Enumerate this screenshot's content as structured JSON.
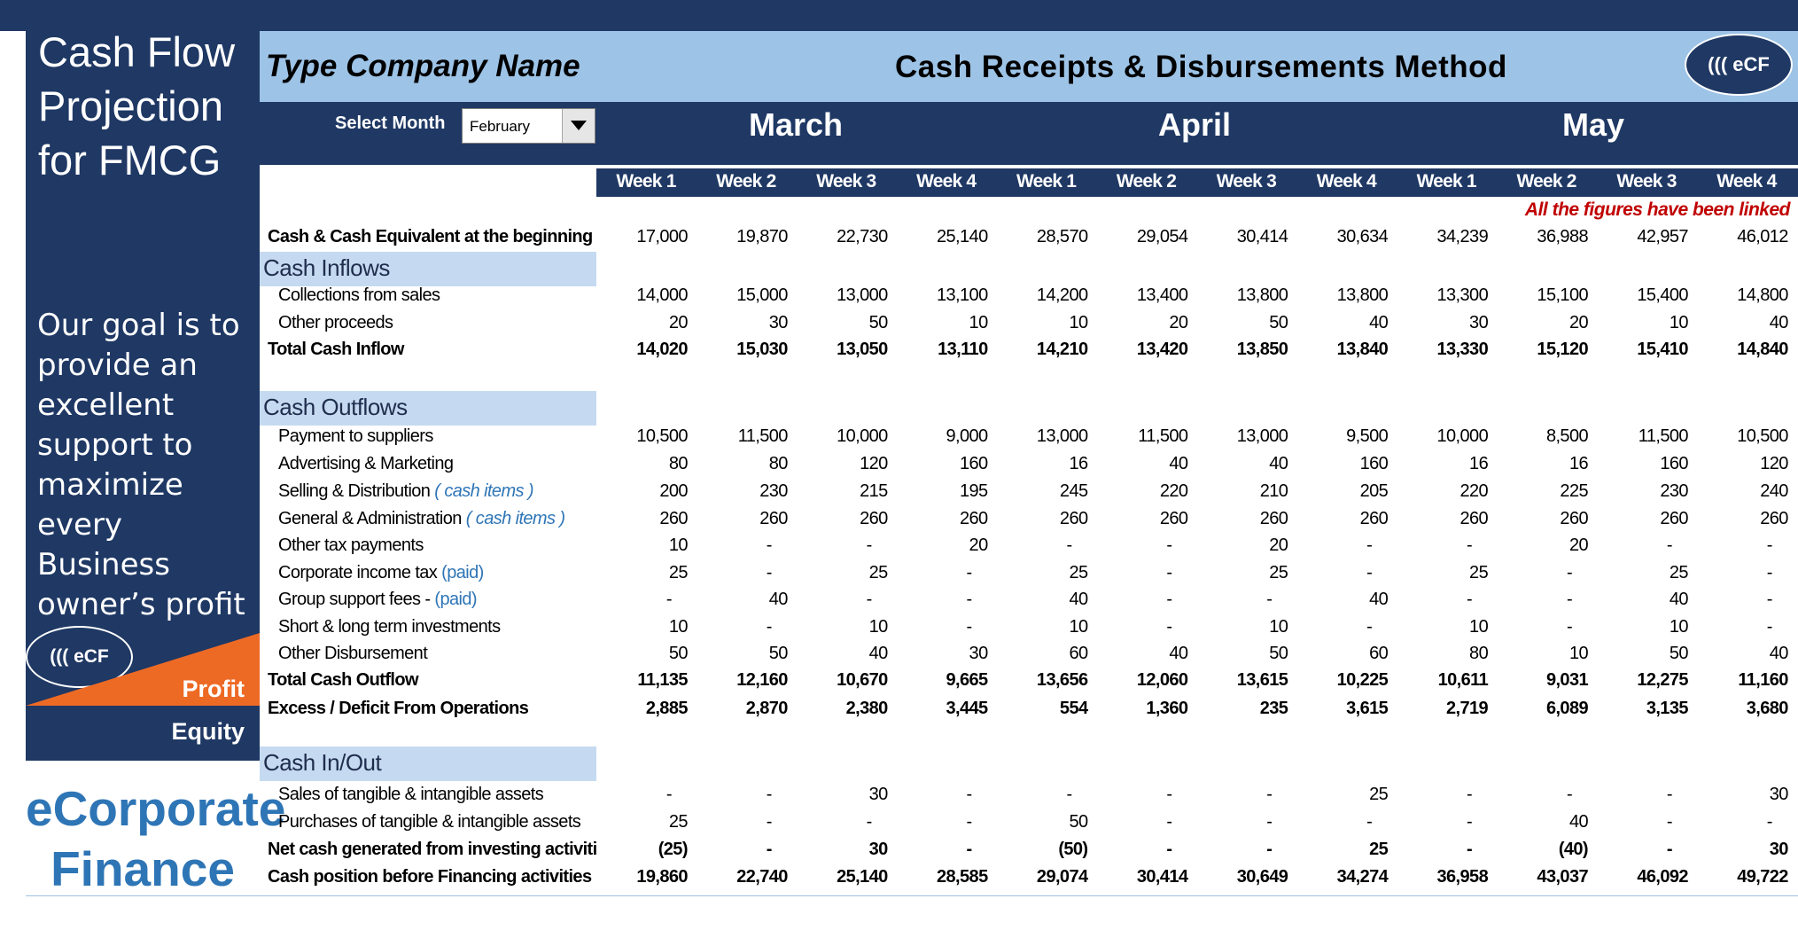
{
  "sidebar": {
    "title": "Cash Flow Projection for FMCG",
    "goal": "Our goal is to provide an excellent support to maximize every Business owner’s profit",
    "logo_text": "((( eCF",
    "profit_label": "Profit",
    "equity_label": "Equity",
    "brand_line1": "eCorporate",
    "brand_line2": "Finance"
  },
  "header": {
    "company_name": "Type Company Name",
    "method_title": "Cash Receipts & Disbursements Method",
    "logo_text": "((( eCF",
    "select_label": "Select Month",
    "selected_month": "February",
    "months": [
      "March",
      "April",
      "May"
    ],
    "weeks": [
      "Week 1",
      "Week 2",
      "Week 3",
      "Week 4",
      "Week 1",
      "Week 2",
      "Week 3",
      "Week 4",
      "Week 1",
      "Week 2",
      "Week 3",
      "Week 4"
    ],
    "note": "All the figures have been linked"
  },
  "colors": {
    "navy": "#1f3864",
    "light_blue": "#9dc3e6",
    "section_blue": "#c5daf0",
    "orange": "#ed6a25",
    "note_red": "#c00000",
    "brand_blue": "#2e75b6"
  },
  "rows": [
    {
      "label": "Cash & Cash Equivalent at the beginning",
      "style": "bold-label",
      "values": [
        "17,000",
        "19,870",
        "22,730",
        "25,140",
        "28,570",
        "29,054",
        "30,414",
        "30,634",
        "34,239",
        "36,988",
        "42,957",
        "46,012"
      ]
    },
    {
      "section": "Cash Inflows"
    },
    {
      "label": "Collections from sales",
      "style": "indent",
      "values": [
        "14,000",
        "15,000",
        "13,000",
        "13,100",
        "14,200",
        "13,400",
        "13,800",
        "13,800",
        "13,300",
        "15,100",
        "15,400",
        "14,800"
      ]
    },
    {
      "label": "Other proceeds",
      "style": "indent",
      "values": [
        "20",
        "30",
        "50",
        "10",
        "10",
        "20",
        "50",
        "40",
        "30",
        "20",
        "10",
        "40"
      ]
    },
    {
      "label": "Total Cash Inflow",
      "style": "total",
      "values": [
        "14,020",
        "15,030",
        "13,050",
        "13,110",
        "14,210",
        "13,420",
        "13,850",
        "13,840",
        "13,330",
        "15,120",
        "15,410",
        "14,840"
      ]
    },
    {
      "section": "Cash Outflows"
    },
    {
      "label": "Payment to suppliers",
      "style": "indent",
      "values": [
        "10,500",
        "11,500",
        "10,000",
        "9,000",
        "13,000",
        "11,500",
        "13,000",
        "9,500",
        "10,000",
        "8,500",
        "11,500",
        "10,500"
      ]
    },
    {
      "label": "Advertising & Marketing",
      "style": "indent",
      "values": [
        "80",
        "80",
        "120",
        "160",
        "16",
        "40",
        "40",
        "160",
        "16",
        "16",
        "160",
        "120"
      ]
    },
    {
      "label": "Selling & Distribution",
      "tag": "( cash items )",
      "tag_italic": true,
      "style": "indent",
      "values": [
        "200",
        "230",
        "215",
        "195",
        "245",
        "220",
        "210",
        "205",
        "220",
        "225",
        "230",
        "240"
      ]
    },
    {
      "label": "General & Administration",
      "tag": "( cash items )",
      "tag_italic": true,
      "style": "indent",
      "values": [
        "260",
        "260",
        "260",
        "260",
        "260",
        "260",
        "260",
        "260",
        "260",
        "260",
        "260",
        "260"
      ]
    },
    {
      "label": "Other tax payments",
      "style": "indent",
      "values": [
        "10",
        "-",
        "-",
        "20",
        "-",
        "-",
        "20",
        "-",
        "-",
        "20",
        "-",
        "-"
      ]
    },
    {
      "label": "Corporate income tax",
      "tag": "(paid)",
      "style": "indent",
      "values": [
        "25",
        "-",
        "25",
        "-",
        "25",
        "-",
        "25",
        "-",
        "25",
        "-",
        "25",
        "-"
      ]
    },
    {
      "label": "Group support fees -",
      "tag": "(paid)",
      "style": "indent",
      "values": [
        "-",
        "40",
        "-",
        "-",
        "40",
        "-",
        "-",
        "40",
        "-",
        "-",
        "40",
        "-"
      ]
    },
    {
      "label": "Short & long term investments",
      "style": "indent",
      "values": [
        "10",
        "-",
        "10",
        "-",
        "10",
        "-",
        "10",
        "-",
        "10",
        "-",
        "10",
        "-"
      ]
    },
    {
      "label": "Other Disbursement",
      "style": "indent",
      "values": [
        "50",
        "50",
        "40",
        "30",
        "60",
        "40",
        "50",
        "60",
        "80",
        "10",
        "50",
        "40"
      ]
    },
    {
      "label": "Total Cash Outflow",
      "style": "total",
      "values": [
        "11,135",
        "12,160",
        "10,670",
        "9,665",
        "13,656",
        "12,060",
        "13,615",
        "10,225",
        "10,611",
        "9,031",
        "12,275",
        "11,160"
      ]
    },
    {
      "label": "Excess / Deficit From Operations",
      "style": "total",
      "values": [
        "2,885",
        "2,870",
        "2,380",
        "3,445",
        "554",
        "1,360",
        "235",
        "3,615",
        "2,719",
        "6,089",
        "3,135",
        "3,680"
      ]
    },
    {
      "section": "Cash In/Out"
    },
    {
      "label": "Sales of tangible & intangible assets",
      "style": "indent",
      "values": [
        "-",
        "-",
        "30",
        "-",
        "-",
        "-",
        "-",
        "25",
        "-",
        "-",
        "-",
        "30"
      ]
    },
    {
      "label": "Purchases of tangible & intangible assets",
      "style": "indent",
      "values": [
        "25",
        "-",
        "-",
        "-",
        "50",
        "-",
        "-",
        "-",
        "-",
        "40",
        "-",
        "-"
      ]
    },
    {
      "label": "Net cash generated from investing activiti",
      "style": "total",
      "values": [
        "(25)",
        "-",
        "30",
        "-",
        "(50)",
        "-",
        "-",
        "25",
        "-",
        "(40)",
        "-",
        "30"
      ]
    },
    {
      "label": "Cash position before Financing activities",
      "style": "total",
      "values": [
        "19,860",
        "22,740",
        "25,140",
        "28,585",
        "29,074",
        "30,414",
        "30,649",
        "34,274",
        "36,958",
        "43,037",
        "46,092",
        "49,722"
      ]
    }
  ]
}
